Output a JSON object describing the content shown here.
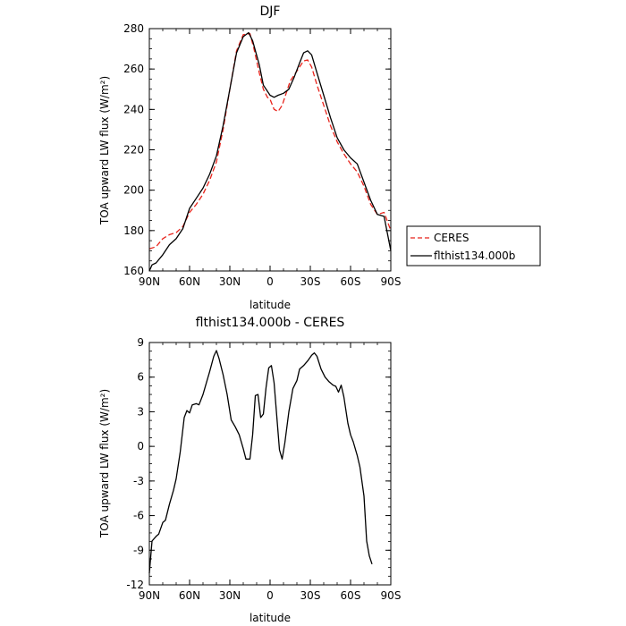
{
  "chart_data": [
    {
      "type": "line",
      "title": "DJF",
      "xlabel": "latitude",
      "ylabel": "TOA upward LW flux (W/m²)",
      "xlim": [
        -90,
        90
      ],
      "ylim": [
        160,
        280
      ],
      "yticks": [
        160,
        180,
        200,
        220,
        240,
        260,
        280
      ],
      "xticks": [
        {
          "value": -90,
          "label": "90N"
        },
        {
          "value": -60,
          "label": "60N"
        },
        {
          "value": -30,
          "label": "30N"
        },
        {
          "value": 0,
          "label": "0"
        },
        {
          "value": 30,
          "label": "30S"
        },
        {
          "value": 60,
          "label": "60S"
        },
        {
          "value": 90,
          "label": "90S"
        }
      ],
      "legend": {
        "placement": "right"
      },
      "series": [
        {
          "name": "CERES",
          "color": "#e8231b",
          "dash": "dashed",
          "points": [
            [
              -90,
              171
            ],
            [
              -85,
              172
            ],
            [
              -80,
              176
            ],
            [
              -75,
              178
            ],
            [
              -70,
              179
            ],
            [
              -65,
              182
            ],
            [
              -60,
              189
            ],
            [
              -55,
              193
            ],
            [
              -50,
              198
            ],
            [
              -45,
              205
            ],
            [
              -40,
              214
            ],
            [
              -35,
              230
            ],
            [
              -30,
              250
            ],
            [
              -25,
              269
            ],
            [
              -20,
              277
            ],
            [
              -15,
              277.5
            ],
            [
              -12,
              270
            ],
            [
              -8,
              258
            ],
            [
              -5,
              250
            ],
            [
              -2,
              246
            ],
            [
              0,
              245
            ],
            [
              3,
              240
            ],
            [
              6,
              239
            ],
            [
              9,
              242
            ],
            [
              12,
              248
            ],
            [
              15,
              254
            ],
            [
              20,
              259
            ],
            [
              25,
              264
            ],
            [
              28,
              264.5
            ],
            [
              31,
              261
            ],
            [
              35,
              252
            ],
            [
              40,
              242
            ],
            [
              45,
              232
            ],
            [
              50,
              224
            ],
            [
              55,
              218
            ],
            [
              60,
              213
            ],
            [
              65,
              209
            ],
            [
              70,
              202
            ],
            [
              75,
              193
            ],
            [
              80,
              188
            ],
            [
              85,
              189
            ],
            [
              90,
              180
            ]
          ]
        },
        {
          "name": "flthist134.000b",
          "color": "#000000",
          "dash": "solid",
          "points": [
            [
              -90,
              160
            ],
            [
              -88,
              163
            ],
            [
              -85,
              164
            ],
            [
              -80,
              168
            ],
            [
              -75,
              173
            ],
            [
              -70,
              176
            ],
            [
              -65,
              181
            ],
            [
              -60,
              191
            ],
            [
              -55,
              196
            ],
            [
              -50,
              201
            ],
            [
              -45,
              208
            ],
            [
              -40,
              217
            ],
            [
              -35,
              232
            ],
            [
              -30,
              250
            ],
            [
              -25,
              268
            ],
            [
              -20,
              276
            ],
            [
              -16,
              278
            ],
            [
              -13,
              274
            ],
            [
              -8,
              262
            ],
            [
              -5,
              252
            ],
            [
              -2,
              249
            ],
            [
              0,
              247
            ],
            [
              3,
              246
            ],
            [
              6,
              247
            ],
            [
              10,
              248
            ],
            [
              14,
              250
            ],
            [
              18,
              256
            ],
            [
              22,
              263
            ],
            [
              25,
              268
            ],
            [
              28,
              269
            ],
            [
              31,
              267
            ],
            [
              35,
              258
            ],
            [
              40,
              247
            ],
            [
              45,
              236
            ],
            [
              50,
              226
            ],
            [
              55,
              220
            ],
            [
              60,
              216
            ],
            [
              65,
              213
            ],
            [
              70,
              204
            ],
            [
              75,
              195
            ],
            [
              80,
              188
            ],
            [
              85,
              187
            ],
            [
              90,
              170
            ]
          ]
        }
      ]
    },
    {
      "type": "line",
      "title": "flthist134.000b - CERES",
      "xlabel": "latitude",
      "ylabel": "TOA upward LW flux (W/m²)",
      "xlim": [
        -90,
        90
      ],
      "ylim": [
        -12,
        9
      ],
      "yticks": [
        -12,
        -9,
        -6,
        -3,
        0,
        3,
        6,
        9
      ],
      "xticks": [
        {
          "value": -90,
          "label": "90N"
        },
        {
          "value": -60,
          "label": "60N"
        },
        {
          "value": -30,
          "label": "30N"
        },
        {
          "value": 0,
          "label": "0"
        },
        {
          "value": 30,
          "label": "30S"
        },
        {
          "value": 60,
          "label": "60S"
        },
        {
          "value": 90,
          "label": "90S"
        }
      ],
      "series": [
        {
          "name": "",
          "color": "#000000",
          "dash": "solid",
          "points": [
            [
              -90,
              -11
            ],
            [
              -88,
              -8.2
            ],
            [
              -85,
              -7.8
            ],
            [
              -83,
              -7.6
            ],
            [
              -80,
              -6.6
            ],
            [
              -78,
              -6.4
            ],
            [
              -75,
              -5
            ],
            [
              -72,
              -3.8
            ],
            [
              -70,
              -2.8
            ],
            [
              -67,
              -0.5
            ],
            [
              -64,
              2.5
            ],
            [
              -62,
              3.1
            ],
            [
              -60,
              2.9
            ],
            [
              -58,
              3.6
            ],
            [
              -55,
              3.7
            ],
            [
              -53,
              3.6
            ],
            [
              -50,
              4.5
            ],
            [
              -47,
              5.7
            ],
            [
              -45,
              6.5
            ],
            [
              -42,
              7.8
            ],
            [
              -40,
              8.3
            ],
            [
              -38,
              7.6
            ],
            [
              -35,
              6.2
            ],
            [
              -32,
              4.5
            ],
            [
              -29,
              2.3
            ],
            [
              -26,
              1.7
            ],
            [
              -23,
              1.0
            ],
            [
              -20,
              -0.2
            ],
            [
              -18,
              -1.1
            ],
            [
              -15,
              -1.1
            ],
            [
              -13,
              1.0
            ],
            [
              -11,
              4.4
            ],
            [
              -9,
              4.5
            ],
            [
              -7,
              2.5
            ],
            [
              -5,
              2.8
            ],
            [
              -3,
              5.1
            ],
            [
              -1,
              6.8
            ],
            [
              1,
              7.0
            ],
            [
              3,
              5.5
            ],
            [
              5,
              2.6
            ],
            [
              7,
              -0.3
            ],
            [
              9,
              -1.1
            ],
            [
              11,
              0.3
            ],
            [
              14,
              3.0
            ],
            [
              17,
              5.0
            ],
            [
              20,
              5.7
            ],
            [
              22,
              6.7
            ],
            [
              25,
              7.0
            ],
            [
              28,
              7.4
            ],
            [
              31,
              7.9
            ],
            [
              33,
              8.1
            ],
            [
              35,
              7.8
            ],
            [
              38,
              6.7
            ],
            [
              41,
              6.0
            ],
            [
              44,
              5.6
            ],
            [
              47,
              5.3
            ],
            [
              49,
              5.2
            ],
            [
              51,
              4.7
            ],
            [
              53,
              5.3
            ],
            [
              55,
              4.3
            ],
            [
              58,
              2.0
            ],
            [
              60,
              1.0
            ],
            [
              62,
              0.4
            ],
            [
              65,
              -0.8
            ],
            [
              67,
              -1.8
            ],
            [
              70,
              -4.3
            ],
            [
              72,
              -8.2
            ],
            [
              74,
              -9.5
            ],
            [
              76,
              -10.2
            ]
          ]
        }
      ]
    }
  ]
}
